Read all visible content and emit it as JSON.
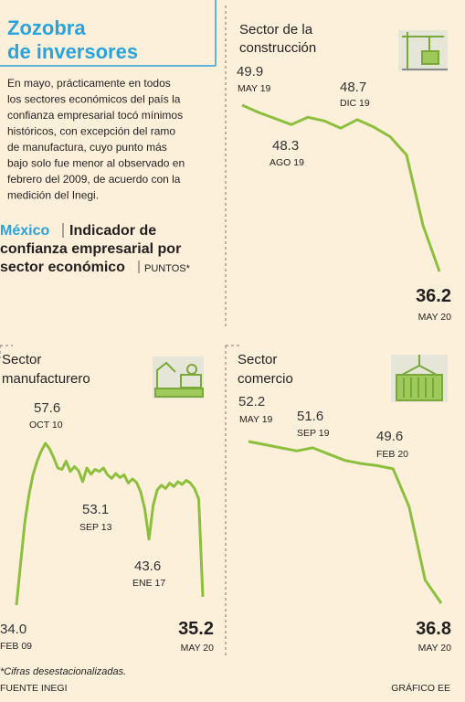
{
  "header": {
    "title_lines": [
      "Zozobra",
      "de inversores"
    ],
    "intro_lines": [
      "En mayo, prácticamente en todos",
      "los sectores económicos del país la",
      "confianza empresarial tocó mínimos",
      "históricos, con excepción del ramo",
      "de manufactura, cuyo punto más",
      "bajo solo fue menor al observado en",
      "febrero del 2009, de acuerdo con la",
      "medición del Inegi."
    ],
    "place": "México",
    "subtitle_lines": [
      "Indicador de",
      "confianza empresarial por",
      "sector económico"
    ],
    "units": "PUNTOS*"
  },
  "chart_data": [
    {
      "type": "line",
      "title_lines": [
        "Sector de la",
        "construcción"
      ],
      "color": "#8dbf3e",
      "categories": [
        "MAY 19",
        null,
        null,
        "AGO 19",
        null,
        null,
        null,
        "DIC 19",
        null,
        null,
        null,
        null,
        "MAY 20"
      ],
      "values": [
        49.9,
        49.3,
        48.8,
        48.3,
        48.9,
        48.6,
        48.0,
        48.7,
        48.1,
        47.3,
        45.8,
        40.0,
        36.2
      ]
    },
    {
      "type": "line",
      "title_lines": [
        "Sector",
        "manufacturero"
      ],
      "color": "#8dbf3e",
      "categories": [
        "FEB 09",
        null,
        null,
        null,
        null,
        null,
        null,
        "OCT 10",
        null,
        null,
        null,
        null,
        null,
        null,
        null,
        null,
        null,
        null,
        "SEP 13",
        null,
        null,
        null,
        null,
        null,
        null,
        null,
        null,
        null,
        null,
        null,
        null,
        null,
        "ENE 17",
        null,
        null,
        null,
        null,
        null,
        null,
        null,
        null,
        null,
        null,
        null,
        null,
        "MAY 20"
      ],
      "values": [
        34.0,
        40,
        46,
        50,
        53,
        55,
        56.5,
        57.6,
        56.8,
        55.5,
        54.0,
        53.8,
        55.0,
        53.5,
        54.2,
        53.6,
        52.0,
        54.0,
        53.1,
        53.8,
        53.5,
        54.0,
        53.0,
        52.5,
        53.2,
        52.6,
        53.0,
        51.8,
        52.4,
        51.9,
        50.5,
        48.0,
        43.6,
        48.5,
        50.8,
        51.5,
        51.0,
        51.8,
        51.3,
        52.0,
        51.6,
        52.2,
        51.8,
        51.0,
        49.5,
        35.2
      ],
      "value_labels": [
        "34.0",
        null,
        null,
        null,
        null,
        null,
        null,
        null,
        null,
        null,
        null,
        null,
        null,
        null,
        null,
        null,
        null,
        null,
        null,
        null,
        null,
        null,
        null,
        null,
        null,
        null,
        null,
        null,
        null,
        null,
        null,
        null,
        null,
        null,
        null,
        null,
        null,
        null,
        null,
        null,
        null,
        null,
        null,
        null,
        null,
        null
      ]
    },
    {
      "type": "line",
      "title_lines": [
        "Sector",
        "comercio"
      ],
      "color": "#8dbf3e",
      "categories": [
        "MAY 19",
        null,
        null,
        null,
        "SEP 19",
        null,
        null,
        null,
        null,
        "FEB 20",
        null,
        null,
        "MAY 20"
      ],
      "values": [
        52.2,
        51.9,
        51.6,
        51.3,
        51.6,
        51.0,
        50.4,
        50.1,
        49.9,
        49.6,
        46.0,
        39.0,
        36.8
      ]
    }
  ],
  "footer": {
    "note": "*Cifras desestacionalizadas.",
    "source": "FUENTE INEGI",
    "credit": "GRÁFICO EE"
  }
}
